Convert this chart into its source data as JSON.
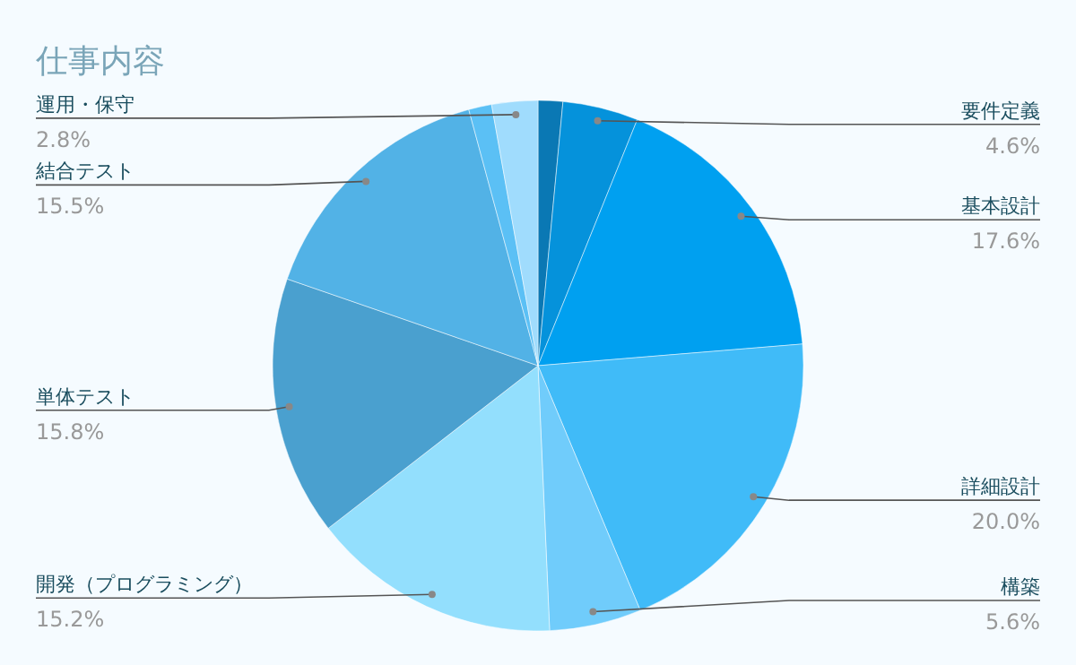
{
  "chart_data": {
    "type": "pie",
    "title": "仕事内容",
    "categories": [
      null,
      "要件定義",
      "基本設計",
      "詳細設計",
      "構築",
      "開発（プログラミング）",
      "単体テスト",
      "結合テスト",
      null,
      "運用・保守"
    ],
    "values": [
      1.5,
      4.6,
      17.6,
      20.0,
      5.6,
      15.2,
      15.8,
      15.5,
      1.4,
      2.8
    ],
    "value_labels": [
      null,
      "4.6%",
      "17.6%",
      "20.0%",
      "5.6%",
      "15.2%",
      "15.8%",
      "15.5%",
      null,
      "2.8%"
    ],
    "colors": [
      "#0a78b4",
      "#0592db",
      "#00a0f0",
      "#40bbf8",
      "#70ccfb",
      "#93dffd",
      "#4aa0cf",
      "#52b2e6",
      "#5bc0f5",
      "#a0dcfd"
    ]
  }
}
